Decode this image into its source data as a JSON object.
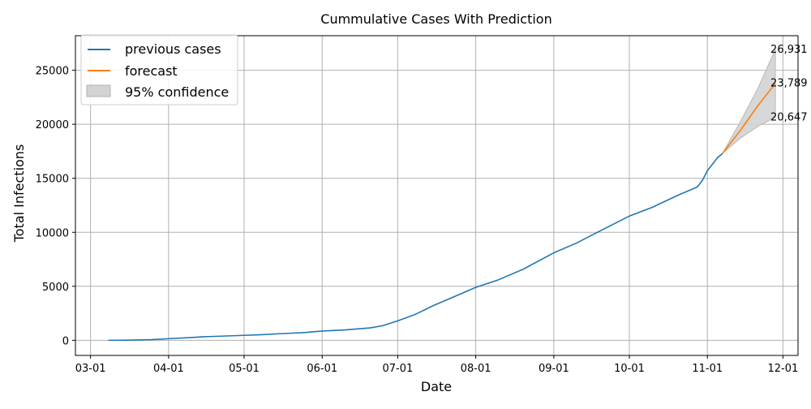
{
  "chart_data": {
    "type": "line",
    "title": "Cummulative Cases With Prediction",
    "xlabel": "Date",
    "ylabel": "Total Infections",
    "x_ticks": [
      "03-01",
      "04-01",
      "05-01",
      "06-01",
      "07-01",
      "08-01",
      "09-01",
      "10-01",
      "11-01",
      "12-01"
    ],
    "y_ticks": [
      0,
      5000,
      10000,
      15000,
      20000,
      25000
    ],
    "y_tick_labels": [
      "0",
      "5000",
      "10000",
      "15000",
      "20000",
      "25000"
    ],
    "xlim": [
      "2020-02-24",
      "2020-12-07"
    ],
    "ylim": [
      -1400,
      28200
    ],
    "grid": true,
    "legend_position": "top-left",
    "series": [
      {
        "name": "previous cases",
        "color": "#1f77b4",
        "points": [
          [
            "2020-03-08",
            0
          ],
          [
            "2020-03-15",
            15
          ],
          [
            "2020-03-25",
            60
          ],
          [
            "2020-04-01",
            150
          ],
          [
            "2020-04-10",
            260
          ],
          [
            "2020-04-15",
            330
          ],
          [
            "2020-05-01",
            460
          ],
          [
            "2020-05-08",
            520
          ],
          [
            "2020-05-15",
            610
          ],
          [
            "2020-05-25",
            720
          ],
          [
            "2020-06-01",
            860
          ],
          [
            "2020-06-10",
            960
          ],
          [
            "2020-06-20",
            1150
          ],
          [
            "2020-06-25",
            1350
          ],
          [
            "2020-07-01",
            1800
          ],
          [
            "2020-07-08",
            2400
          ],
          [
            "2020-07-15",
            3200
          ],
          [
            "2020-07-22",
            3900
          ],
          [
            "2020-08-01",
            4900
          ],
          [
            "2020-08-10",
            5600
          ],
          [
            "2020-08-20",
            6600
          ],
          [
            "2020-09-01",
            8100
          ],
          [
            "2020-09-10",
            9000
          ],
          [
            "2020-09-20",
            10200
          ],
          [
            "2020-10-01",
            11500
          ],
          [
            "2020-10-10",
            12300
          ],
          [
            "2020-10-20",
            13400
          ],
          [
            "2020-10-28",
            14200
          ],
          [
            "2020-10-30",
            14800
          ],
          [
            "2020-11-01",
            15700
          ],
          [
            "2020-11-05",
            16900
          ],
          [
            "2020-11-07",
            17300
          ]
        ]
      },
      {
        "name": "forecast",
        "color": "#ff7f0e",
        "points": [
          [
            "2020-11-07",
            17300
          ],
          [
            "2020-11-14",
            19400
          ],
          [
            "2020-11-21",
            21700
          ],
          [
            "2020-11-28",
            23789
          ]
        ]
      }
    ],
    "confidence_band": {
      "name": "95% confidence",
      "color": "#d3d3d3",
      "x": [
        "2020-11-07",
        "2020-11-14",
        "2020-11-21",
        "2020-11-28"
      ],
      "upper": [
        17300,
        20200,
        23300,
        26931
      ],
      "lower": [
        17300,
        18700,
        19800,
        20647
      ]
    },
    "annotations": [
      {
        "x": "2020-11-28",
        "y": 26931,
        "text": "26,931"
      },
      {
        "x": "2020-11-28",
        "y": 23789,
        "text": "23,789"
      },
      {
        "x": "2020-11-28",
        "y": 20647,
        "text": "20,647"
      }
    ]
  }
}
